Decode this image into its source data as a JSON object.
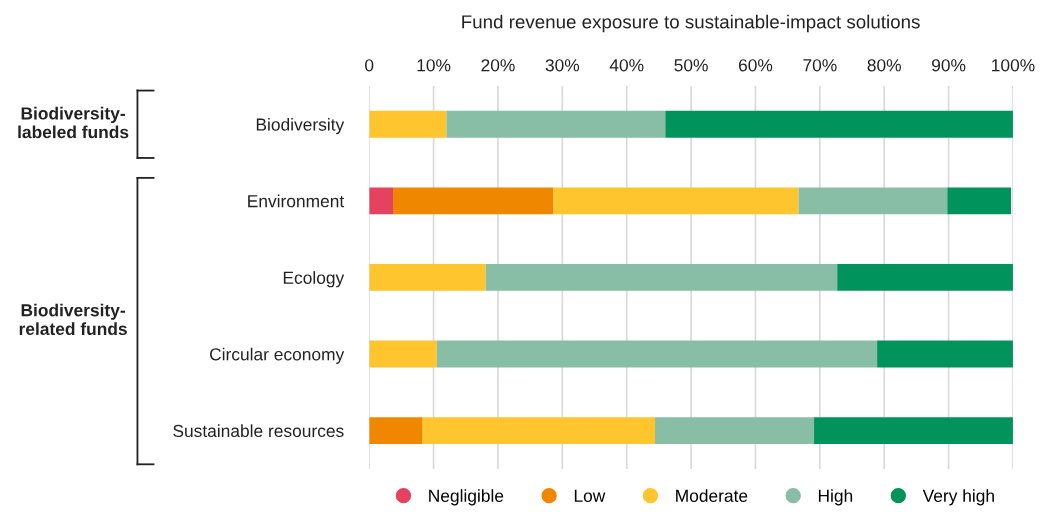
{
  "chart_data": {
    "type": "bar",
    "orientation": "horizontal",
    "stacked": true,
    "title": "Fund revenue exposure to sustainable-impact solutions",
    "categories": [
      "Biodiversity",
      "Environment",
      "Ecology",
      "Circular economy",
      "Sustainable resources"
    ],
    "series": [
      {
        "name": "Negligible",
        "color": "#e5425f",
        "values": [
          0,
          3.7,
          0,
          0,
          0
        ]
      },
      {
        "name": "Low",
        "color": "#f08700",
        "values": [
          0,
          24.9,
          0,
          0,
          8.3
        ]
      },
      {
        "name": "Moderate",
        "color": "#ffc52f",
        "values": [
          12,
          38.1,
          18.1,
          10.5,
          36.1
        ]
      },
      {
        "name": "High",
        "color": "#88bda6",
        "values": [
          34,
          23.1,
          54.6,
          68.4,
          24.7
        ]
      },
      {
        "name": "Very high",
        "color": "#00945c",
        "values": [
          54,
          9.9,
          27.3,
          21.1,
          30.9
        ]
      }
    ],
    "xlim": [
      0,
      100
    ],
    "xticks": [
      {
        "value": 0,
        "label": "0"
      },
      {
        "value": 10,
        "label": "10%"
      },
      {
        "value": 20,
        "label": "20%"
      },
      {
        "value": 30,
        "label": "30%"
      },
      {
        "value": 40,
        "label": "40%"
      },
      {
        "value": 50,
        "label": "50%"
      },
      {
        "value": 60,
        "label": "60%"
      },
      {
        "value": 70,
        "label": "70%"
      },
      {
        "value": 80,
        "label": "80%"
      },
      {
        "value": 90,
        "label": "90%"
      },
      {
        "value": 100,
        "label": "100%"
      }
    ],
    "grid": "x",
    "legend": "bottom",
    "annotations": [
      "Biodiversity-\nlabeled funds",
      "Biodiversity-\nrelated funds"
    ]
  }
}
